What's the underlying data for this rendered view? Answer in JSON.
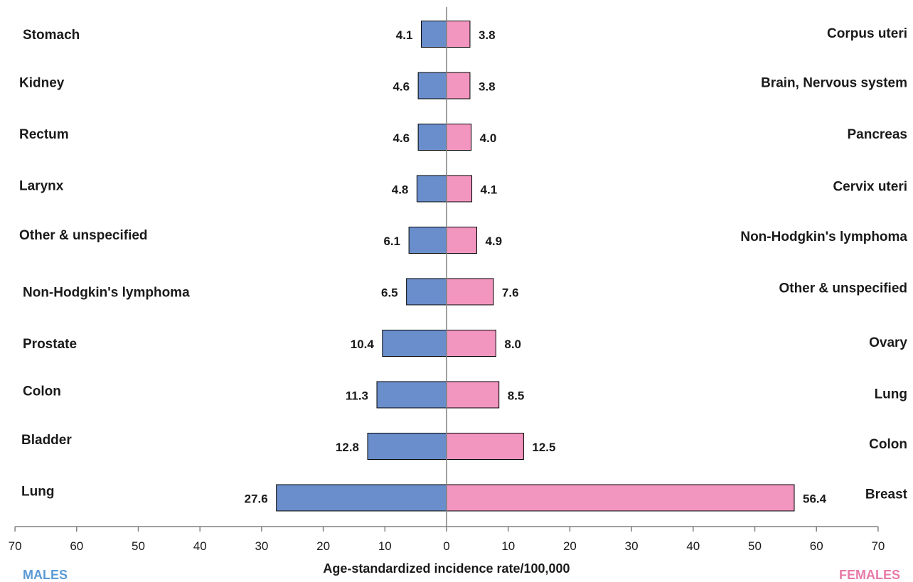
{
  "chart_data": {
    "type": "bar",
    "orientation": "horizontal",
    "layout": "butterfly",
    "xlabel": "Age-standardized incidence rate/100,000",
    "xlim": [
      -70,
      70
    ],
    "ticks": [
      70,
      60,
      50,
      40,
      30,
      20,
      10,
      0,
      10,
      20,
      30,
      40,
      50,
      60,
      70
    ],
    "grid": false,
    "series": [
      {
        "name": "MALES",
        "side": "left",
        "color": "#6a8ecb",
        "categories": [
          "Stomach",
          "Kidney",
          "Rectum",
          "Larynx",
          "Other & unspecified",
          "Non-Hodgkin's lymphoma",
          "Prostate",
          "Colon",
          "Bladder",
          "Lung"
        ],
        "values": [
          4.1,
          4.6,
          4.6,
          4.8,
          6.1,
          6.5,
          10.4,
          11.3,
          12.8,
          27.6
        ],
        "labels": [
          "4.1",
          "4.6",
          "4.6",
          "4.8",
          "6.1",
          "6.5",
          "10.4",
          "11.3",
          "12.8",
          "27.6"
        ]
      },
      {
        "name": "FEMALES",
        "side": "right",
        "color": "#f296c0",
        "categories": [
          "Corpus uteri",
          "Brain, Nervous system",
          "Pancreas",
          "Cervix uteri",
          "Non-Hodgkin's lymphoma",
          "Other & unspecified",
          "Ovary",
          "Lung",
          "Colon",
          "Breast"
        ],
        "values": [
          3.8,
          3.8,
          4.0,
          4.1,
          4.9,
          7.6,
          8.0,
          8.5,
          12.5,
          56.4
        ],
        "labels": [
          "3.8",
          "3.8",
          "4.0",
          "4.1",
          "4.9",
          "7.6",
          "8.0",
          "8.5",
          "12.5",
          "56.4"
        ]
      }
    ],
    "colors": {
      "males_label": "#5b9bd5",
      "females_label": "#e87aa8",
      "bar_outline": "#000000",
      "axis": "#808080"
    }
  }
}
